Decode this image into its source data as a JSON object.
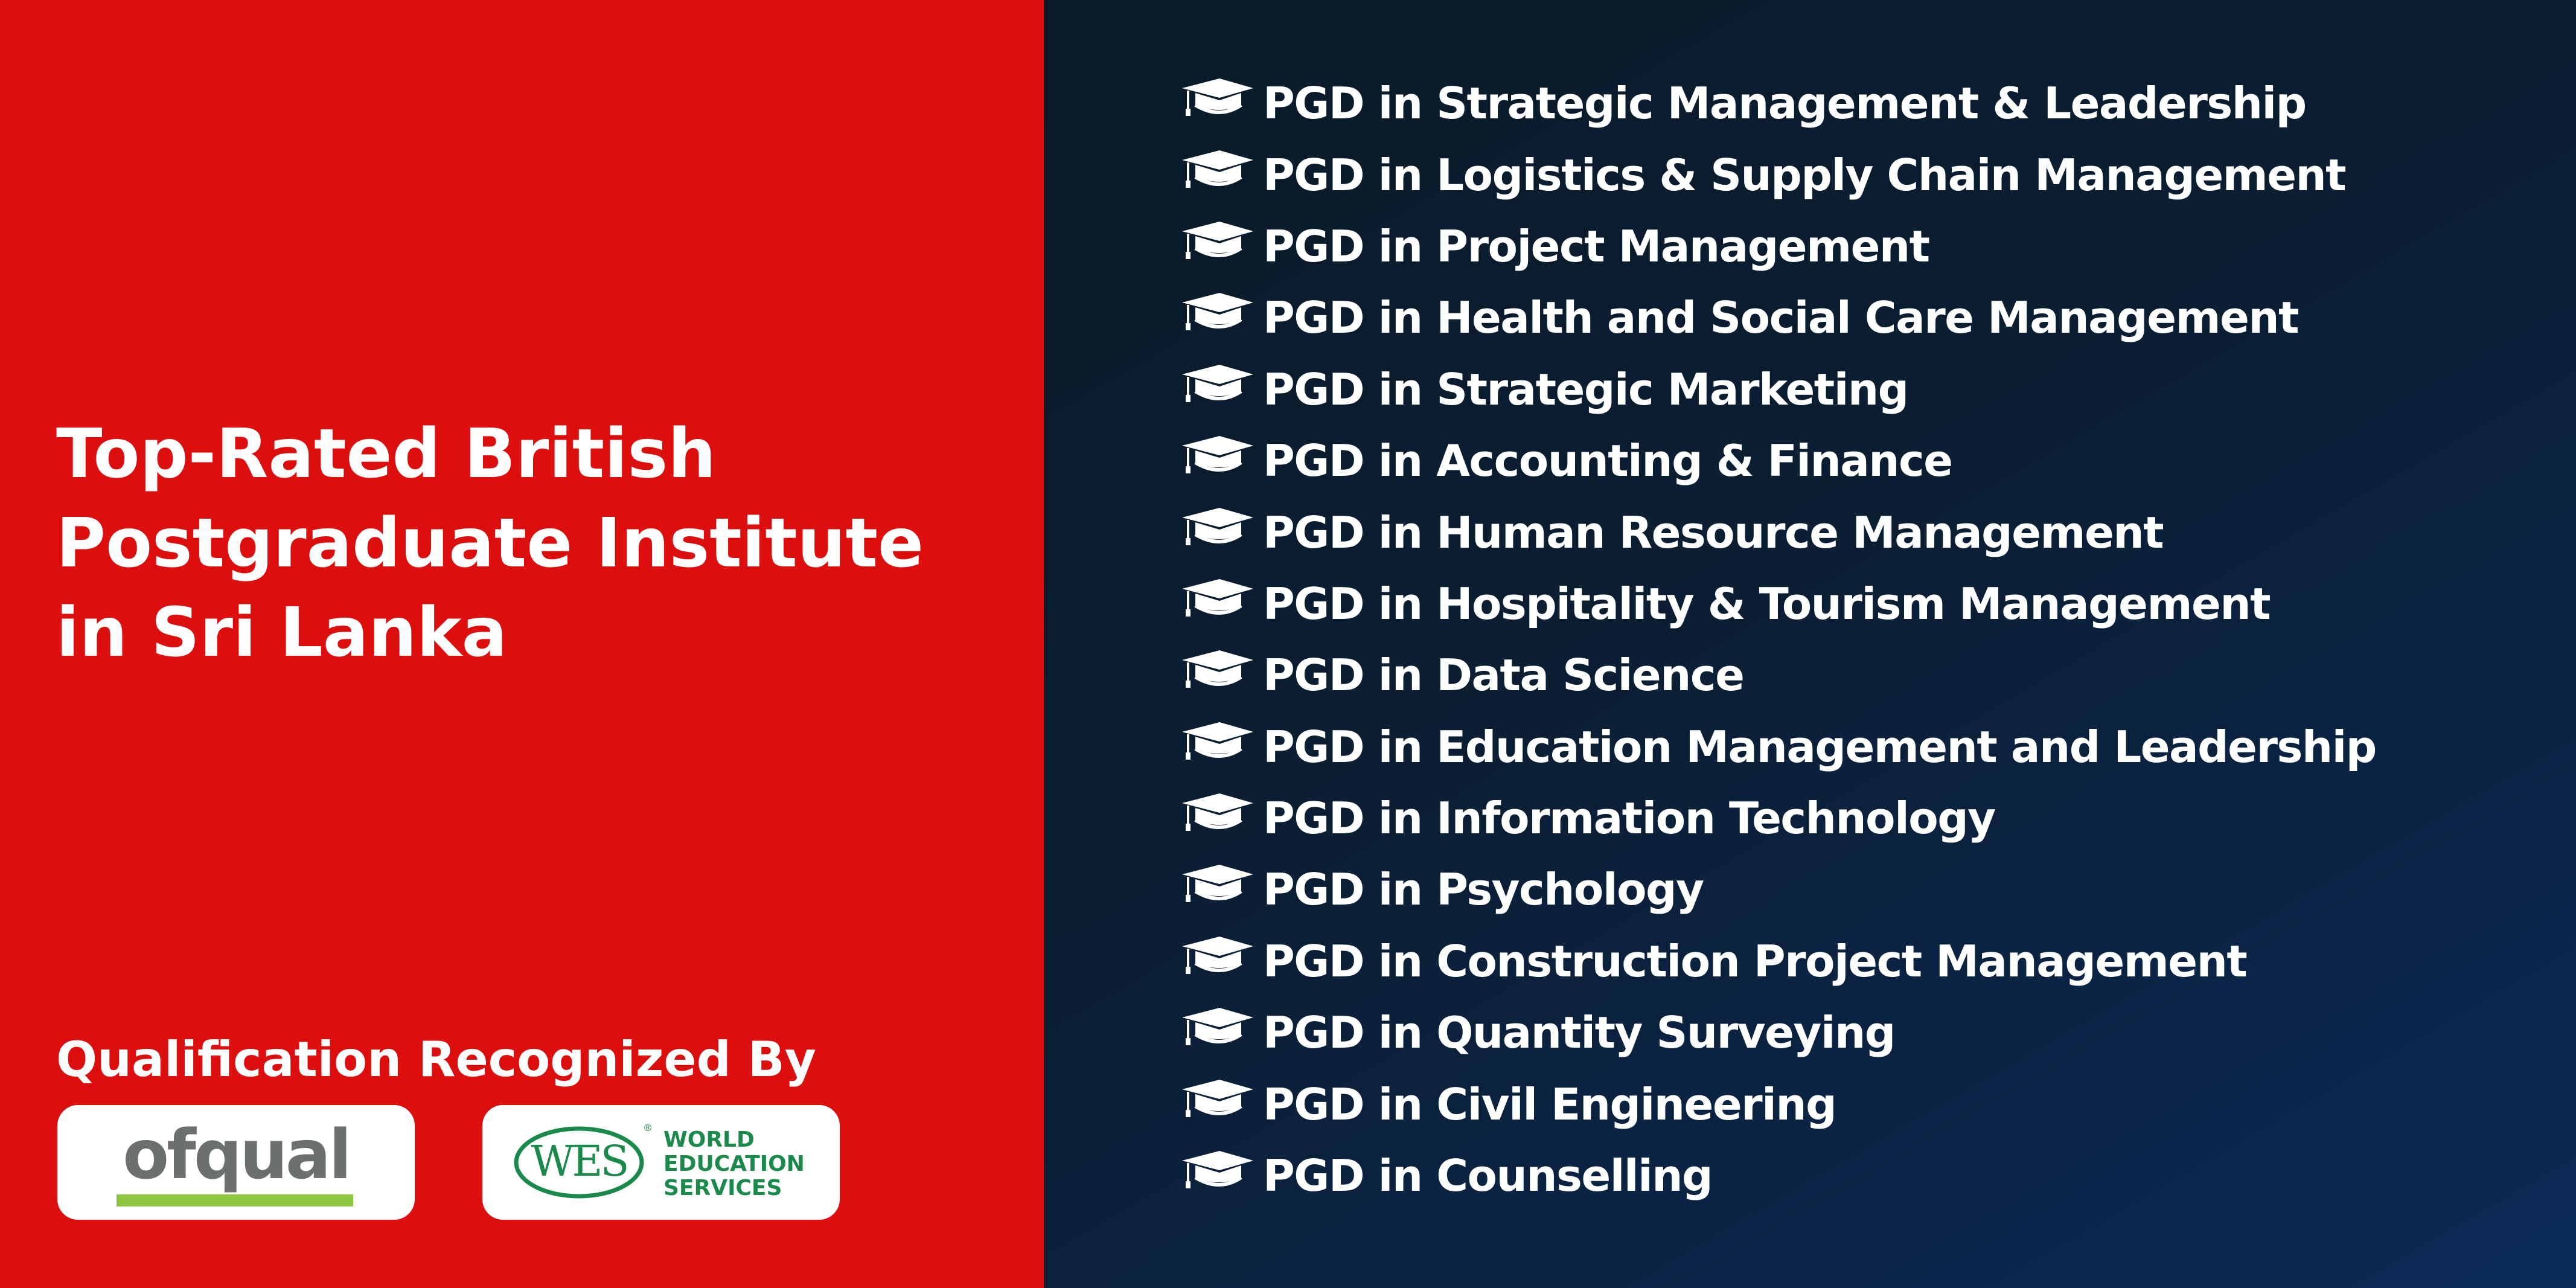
{
  "headline": {
    "lines": [
      "Top-Rated British",
      "Postgraduate Institute",
      "in Sri Lanka"
    ]
  },
  "recognition": {
    "title": "Qualification Recognized By",
    "logos": {
      "ofqual": "ofqual",
      "wes_emblem": "WES",
      "wes_registered": "®",
      "wes_words": [
        "WORLD",
        "EDUCATION",
        "SERVICES"
      ]
    }
  },
  "courses": [
    "PGD in Strategic Management & Leadership",
    "PGD in Logistics & Supply Chain Management",
    "PGD in Project Management",
    "PGD in Health and Social Care Management",
    "PGD in Strategic Marketing",
    "PGD in Accounting & Finance",
    "PGD in Human Resource Management",
    "PGD in Hospitality & Tourism Management",
    "PGD in Data Science",
    "PGD in Education Management and Leadership",
    "PGD in Information Technology",
    "PGD in Psychology",
    "PGD in Construction Project Management",
    "PGD in Quantity Surveying",
    "PGD in Civil Engineering",
    "PGD in Counselling"
  ],
  "icons": {
    "course_bullet": "graduation-cap-icon"
  },
  "colors": {
    "left_background": "#dc0e0e",
    "right_background_dark": "#0a1a28",
    "right_background_blue": "#0b2a57",
    "text": "#ffffff",
    "ofqual_grey": "#6b6f6e",
    "ofqual_green": "#8cc63f",
    "wes_green": "#1a8a4a"
  }
}
